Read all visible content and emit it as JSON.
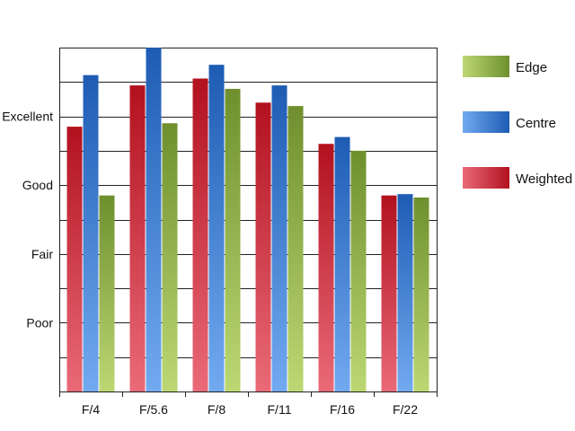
{
  "chart_data": {
    "type": "bar",
    "categories": [
      "F/4",
      "F/5.6",
      "F/8",
      "F/11",
      "F/16",
      "F/22"
    ],
    "series": [
      {
        "name": "Weighted",
        "values": [
          3.85,
          4.45,
          4.55,
          4.2,
          3.6,
          2.85
        ],
        "color_dark": "#b2111e",
        "color_light": "#ea6a78"
      },
      {
        "name": "Centre",
        "values": [
          4.6,
          5.0,
          4.75,
          4.45,
          3.7,
          2.87
        ],
        "color_dark": "#1e5cb4",
        "color_light": "#72aaf0"
      },
      {
        "name": "Edge",
        "values": [
          2.85,
          3.9,
          4.4,
          4.15,
          3.5,
          2.82
        ],
        "color_dark": "#6f8f2e",
        "color_light": "#bcd873"
      }
    ],
    "legend_order": [
      "Edge",
      "Centre",
      "Weighted"
    ],
    "y_ticks": [
      {
        "value": 1,
        "label": "Poor"
      },
      {
        "value": 2,
        "label": "Fair"
      },
      {
        "value": 3,
        "label": "Good"
      },
      {
        "value": 4,
        "label": "Excellent"
      }
    ],
    "ylim": [
      0,
      5.1
    ],
    "grid": true,
    "legend_position": "right"
  }
}
